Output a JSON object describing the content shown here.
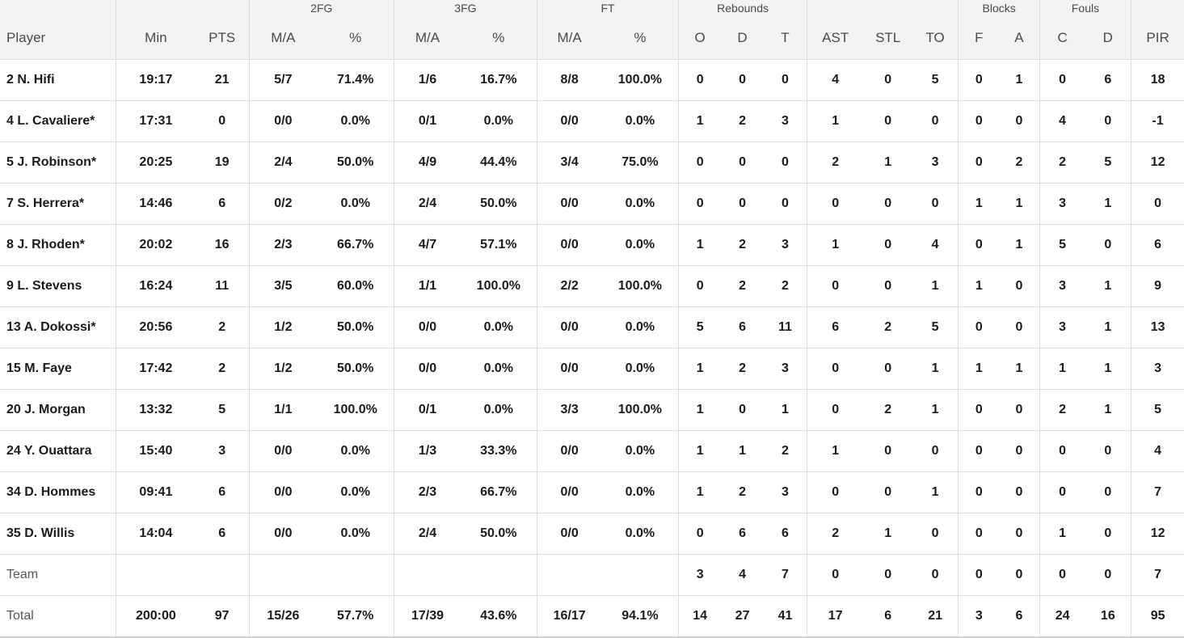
{
  "header": {
    "groups": {
      "fg2": "2FG",
      "fg3": "3FG",
      "ft": "FT",
      "rebounds": "Rebounds",
      "blocks": "Blocks",
      "fouls": "Fouls"
    },
    "columns": {
      "player": "Player",
      "min": "Min",
      "pts": "PTS",
      "fg2_ma": "M/A",
      "fg2_pct": "%",
      "fg3_ma": "M/A",
      "fg3_pct": "%",
      "ft_ma": "M/A",
      "ft_pct": "%",
      "reb_o": "O",
      "reb_d": "D",
      "reb_t": "T",
      "ast": "AST",
      "stl": "STL",
      "to": "TO",
      "blk_f": "F",
      "blk_a": "A",
      "foul_c": "C",
      "foul_d": "D",
      "pir": "PIR"
    }
  },
  "rows": [
    {
      "player": "2 N. Hifi",
      "min": "19:17",
      "pts": "21",
      "fg2_ma": "5/7",
      "fg2_pct": "71.4%",
      "fg3_ma": "1/6",
      "fg3_pct": "16.7%",
      "ft_ma": "8/8",
      "ft_pct": "100.0%",
      "reb_o": "0",
      "reb_d": "0",
      "reb_t": "0",
      "ast": "4",
      "stl": "0",
      "to": "5",
      "blk_f": "0",
      "blk_a": "1",
      "foul_c": "0",
      "foul_d": "6",
      "pir": "18"
    },
    {
      "player": "4 L. Cavaliere*",
      "min": "17:31",
      "pts": "0",
      "fg2_ma": "0/0",
      "fg2_pct": "0.0%",
      "fg3_ma": "0/1",
      "fg3_pct": "0.0%",
      "ft_ma": "0/0",
      "ft_pct": "0.0%",
      "reb_o": "1",
      "reb_d": "2",
      "reb_t": "3",
      "ast": "1",
      "stl": "0",
      "to": "0",
      "blk_f": "0",
      "blk_a": "0",
      "foul_c": "4",
      "foul_d": "0",
      "pir": "-1"
    },
    {
      "player": "5 J. Robinson*",
      "min": "20:25",
      "pts": "19",
      "fg2_ma": "2/4",
      "fg2_pct": "50.0%",
      "fg3_ma": "4/9",
      "fg3_pct": "44.4%",
      "ft_ma": "3/4",
      "ft_pct": "75.0%",
      "reb_o": "0",
      "reb_d": "0",
      "reb_t": "0",
      "ast": "2",
      "stl": "1",
      "to": "3",
      "blk_f": "0",
      "blk_a": "2",
      "foul_c": "2",
      "foul_d": "5",
      "pir": "12"
    },
    {
      "player": "7 S. Herrera*",
      "min": "14:46",
      "pts": "6",
      "fg2_ma": "0/2",
      "fg2_pct": "0.0%",
      "fg3_ma": "2/4",
      "fg3_pct": "50.0%",
      "ft_ma": "0/0",
      "ft_pct": "0.0%",
      "reb_o": "0",
      "reb_d": "0",
      "reb_t": "0",
      "ast": "0",
      "stl": "0",
      "to": "0",
      "blk_f": "1",
      "blk_a": "1",
      "foul_c": "3",
      "foul_d": "1",
      "pir": "0"
    },
    {
      "player": "8 J. Rhoden*",
      "min": "20:02",
      "pts": "16",
      "fg2_ma": "2/3",
      "fg2_pct": "66.7%",
      "fg3_ma": "4/7",
      "fg3_pct": "57.1%",
      "ft_ma": "0/0",
      "ft_pct": "0.0%",
      "reb_o": "1",
      "reb_d": "2",
      "reb_t": "3",
      "ast": "1",
      "stl": "0",
      "to": "4",
      "blk_f": "0",
      "blk_a": "1",
      "foul_c": "5",
      "foul_d": "0",
      "pir": "6"
    },
    {
      "player": "9 L. Stevens",
      "min": "16:24",
      "pts": "11",
      "fg2_ma": "3/5",
      "fg2_pct": "60.0%",
      "fg3_ma": "1/1",
      "fg3_pct": "100.0%",
      "ft_ma": "2/2",
      "ft_pct": "100.0%",
      "reb_o": "0",
      "reb_d": "2",
      "reb_t": "2",
      "ast": "0",
      "stl": "0",
      "to": "1",
      "blk_f": "1",
      "blk_a": "0",
      "foul_c": "3",
      "foul_d": "1",
      "pir": "9"
    },
    {
      "player": "13 A. Dokossi*",
      "min": "20:56",
      "pts": "2",
      "fg2_ma": "1/2",
      "fg2_pct": "50.0%",
      "fg3_ma": "0/0",
      "fg3_pct": "0.0%",
      "ft_ma": "0/0",
      "ft_pct": "0.0%",
      "reb_o": "5",
      "reb_d": "6",
      "reb_t": "11",
      "ast": "6",
      "stl": "2",
      "to": "5",
      "blk_f": "0",
      "blk_a": "0",
      "foul_c": "3",
      "foul_d": "1",
      "pir": "13"
    },
    {
      "player": "15 M. Faye",
      "min": "17:42",
      "pts": "2",
      "fg2_ma": "1/2",
      "fg2_pct": "50.0%",
      "fg3_ma": "0/0",
      "fg3_pct": "0.0%",
      "ft_ma": "0/0",
      "ft_pct": "0.0%",
      "reb_o": "1",
      "reb_d": "2",
      "reb_t": "3",
      "ast": "0",
      "stl": "0",
      "to": "1",
      "blk_f": "1",
      "blk_a": "1",
      "foul_c": "1",
      "foul_d": "1",
      "pir": "3"
    },
    {
      "player": "20 J. Morgan",
      "min": "13:32",
      "pts": "5",
      "fg2_ma": "1/1",
      "fg2_pct": "100.0%",
      "fg3_ma": "0/1",
      "fg3_pct": "0.0%",
      "ft_ma": "3/3",
      "ft_pct": "100.0%",
      "reb_o": "1",
      "reb_d": "0",
      "reb_t": "1",
      "ast": "0",
      "stl": "2",
      "to": "1",
      "blk_f": "0",
      "blk_a": "0",
      "foul_c": "2",
      "foul_d": "1",
      "pir": "5"
    },
    {
      "player": "24 Y. Ouattara",
      "min": "15:40",
      "pts": "3",
      "fg2_ma": "0/0",
      "fg2_pct": "0.0%",
      "fg3_ma": "1/3",
      "fg3_pct": "33.3%",
      "ft_ma": "0/0",
      "ft_pct": "0.0%",
      "reb_o": "1",
      "reb_d": "1",
      "reb_t": "2",
      "ast": "1",
      "stl": "0",
      "to": "0",
      "blk_f": "0",
      "blk_a": "0",
      "foul_c": "0",
      "foul_d": "0",
      "pir": "4"
    },
    {
      "player": "34 D. Hommes",
      "min": "09:41",
      "pts": "6",
      "fg2_ma": "0/0",
      "fg2_pct": "0.0%",
      "fg3_ma": "2/3",
      "fg3_pct": "66.7%",
      "ft_ma": "0/0",
      "ft_pct": "0.0%",
      "reb_o": "1",
      "reb_d": "2",
      "reb_t": "3",
      "ast": "0",
      "stl": "0",
      "to": "1",
      "blk_f": "0",
      "blk_a": "0",
      "foul_c": "0",
      "foul_d": "0",
      "pir": "7"
    },
    {
      "player": "35 D. Willis",
      "min": "14:04",
      "pts": "6",
      "fg2_ma": "0/0",
      "fg2_pct": "0.0%",
      "fg3_ma": "2/4",
      "fg3_pct": "50.0%",
      "ft_ma": "0/0",
      "ft_pct": "0.0%",
      "reb_o": "0",
      "reb_d": "6",
      "reb_t": "6",
      "ast": "2",
      "stl": "1",
      "to": "0",
      "blk_f": "0",
      "blk_a": "0",
      "foul_c": "1",
      "foul_d": "0",
      "pir": "12"
    }
  ],
  "team": {
    "player": "Team",
    "reb_o": "3",
    "reb_d": "4",
    "reb_t": "7",
    "ast": "0",
    "stl": "0",
    "to": "0",
    "blk_f": "0",
    "blk_a": "0",
    "foul_c": "0",
    "foul_d": "0",
    "pir": "7"
  },
  "total": {
    "player": "Total",
    "min": "200:00",
    "pts": "97",
    "fg2_ma": "15/26",
    "fg2_pct": "57.7%",
    "fg3_ma": "17/39",
    "fg3_pct": "43.6%",
    "ft_ma": "16/17",
    "ft_pct": "94.1%",
    "reb_o": "14",
    "reb_d": "27",
    "reb_t": "41",
    "ast": "17",
    "stl": "6",
    "to": "21",
    "blk_f": "3",
    "blk_a": "6",
    "foul_c": "24",
    "foul_d": "16",
    "pir": "95"
  }
}
